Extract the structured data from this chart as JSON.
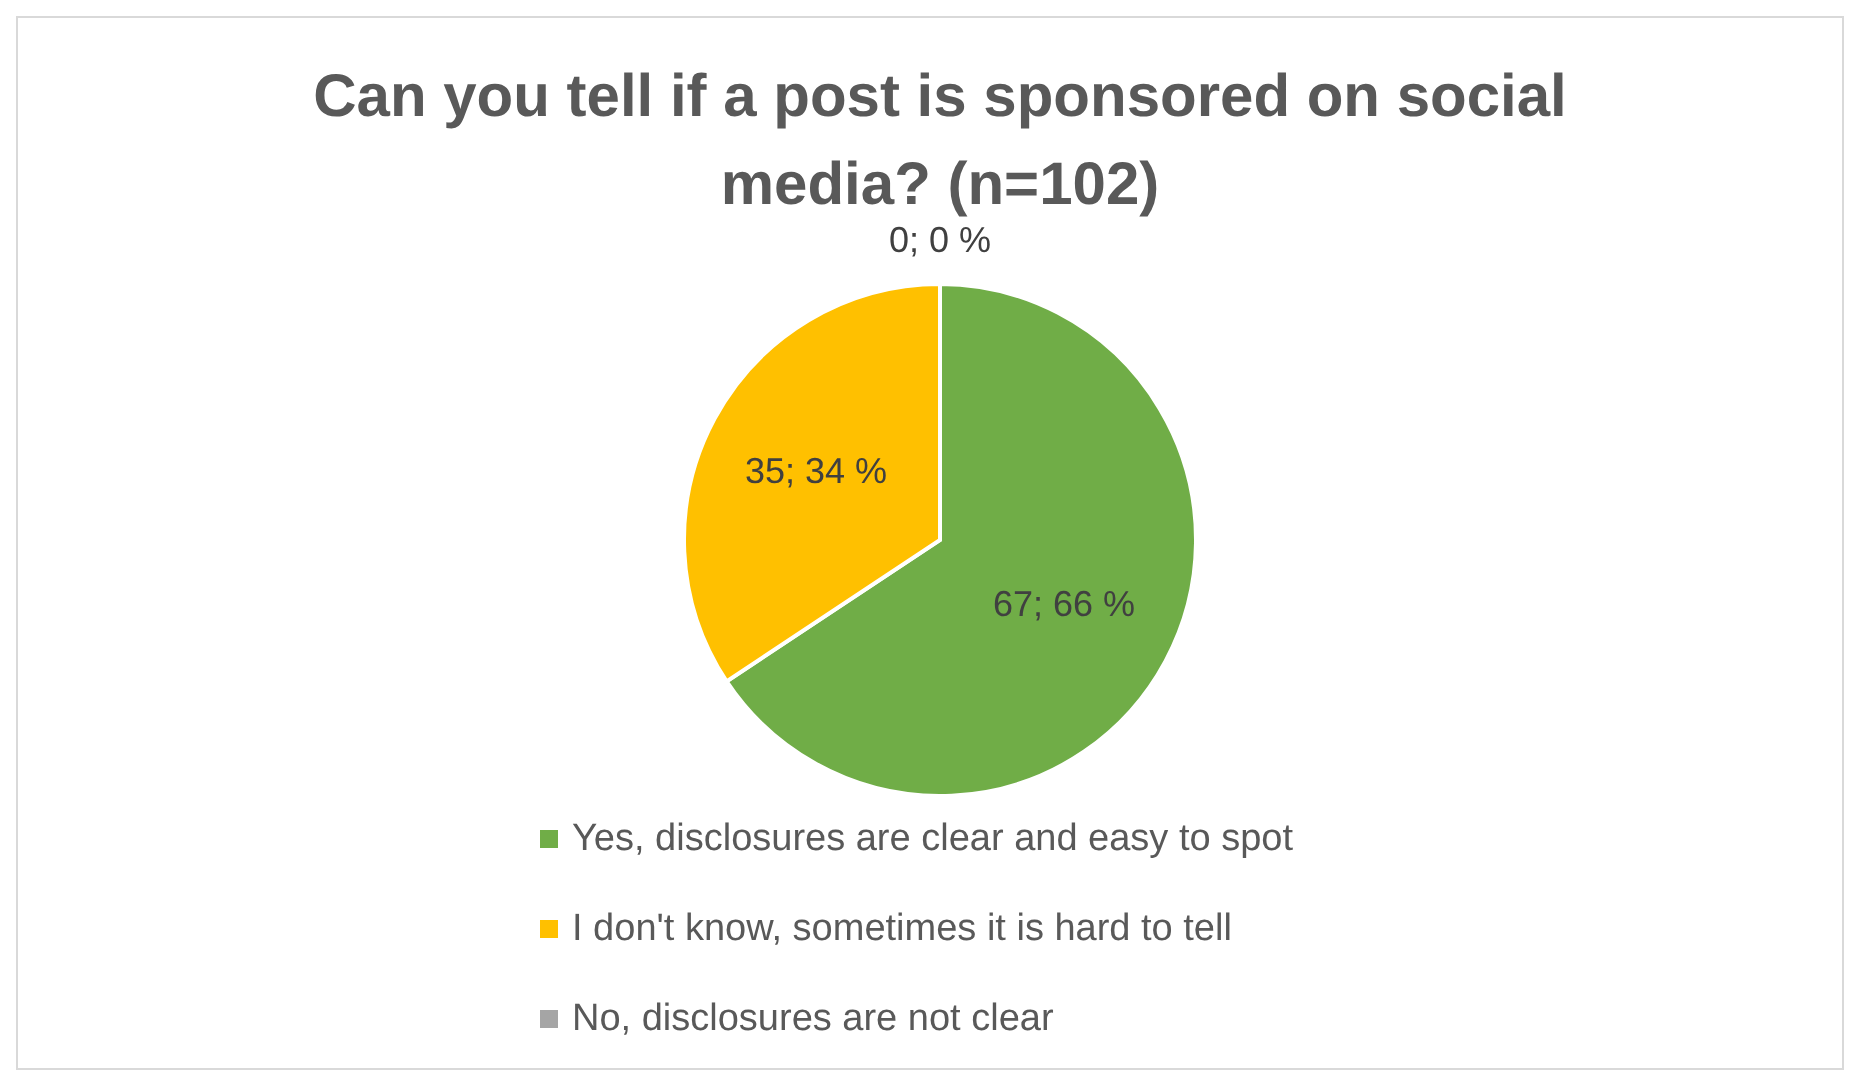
{
  "chart_data": {
    "type": "pie",
    "title": "Can you tell if a post is sponsored on social media? (n=102)",
    "categories": [
      "Yes, disclosures are clear and easy to spot",
      "I don't know, sometimes it is hard to tell",
      "No, disclosures are not clear"
    ],
    "values": [
      67,
      35,
      0
    ],
    "colors": [
      "#70ad47",
      "#ffc000",
      "#a5a5a5"
    ],
    "value_labels": [
      "67; 66 %",
      "35; 34 %",
      "0; 0 %"
    ],
    "legend": "bottom"
  }
}
